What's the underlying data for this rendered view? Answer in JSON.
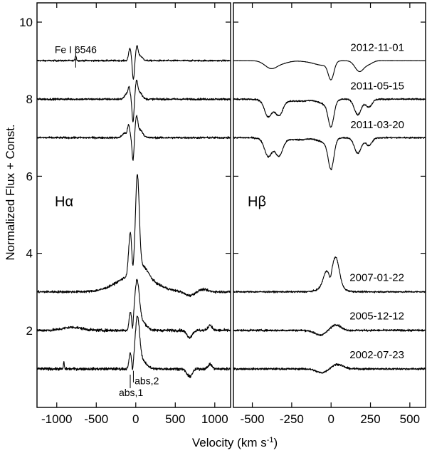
{
  "chart_data": {
    "type": "line",
    "ylabel": "Normalized Flux + Const.",
    "xlabel": "Velocity (km s",
    "xlabel_sup": "-1",
    "xlabel_close": ")",
    "ylim": [
      0.0,
      10.5
    ],
    "yticks": [
      2,
      4,
      6,
      8,
      10
    ],
    "grid": false,
    "epochs": [
      "2012-11-01",
      "2011-05-15",
      "2011-03-20",
      "2007-01-22",
      "2005-12-12",
      "2002-07-23"
    ],
    "panels": [
      {
        "label": "Hα",
        "xlim": [
          -1250,
          1200
        ],
        "xticks": [
          -1000,
          -500,
          0,
          500,
          1000
        ],
        "xtick_labels": [
          "-1000",
          "-500",
          "0",
          "500",
          "1000"
        ],
        "annotations": [
          {
            "text": "Fe I 6546",
            "x": -760,
            "y": 9.2
          },
          {
            "text": "abs,1",
            "x": -60,
            "y": 0.3
          },
          {
            "text": "abs,2",
            "x": -15,
            "y": 0.6
          }
        ],
        "series": [
          {
            "epoch": "2012-11-01",
            "offset": 9.0,
            "noise": 0.02,
            "features": [
              [
                -760,
                0.13,
                8
              ],
              [
                -75,
                0.32,
                15
              ],
              [
                -30,
                -0.5,
                12
              ],
              [
                15,
                0.33,
                15
              ],
              [
                55,
                0.12,
                30
              ]
            ]
          },
          {
            "epoch": "2011-05-15",
            "offset": 8.0,
            "noise": 0.025,
            "features": [
              [
                -85,
                0.28,
                14
              ],
              [
                -120,
                0.12,
                25
              ],
              [
                -35,
                -0.6,
                12
              ],
              [
                10,
                0.42,
                15
              ],
              [
                50,
                0.18,
                30
              ]
            ]
          },
          {
            "epoch": "2011-03-20",
            "offset": 7.0,
            "noise": 0.025,
            "features": [
              [
                -90,
                0.3,
                14
              ],
              [
                -140,
                0.12,
                30
              ],
              [
                -35,
                -0.6,
                12
              ],
              [
                10,
                0.48,
                16
              ],
              [
                55,
                0.2,
                35
              ]
            ]
          },
          {
            "epoch": "2007-01-22",
            "offset": 3.0,
            "noise": 0.03,
            "features": [
              [
                0,
                0.45,
                220
              ],
              [
                -70,
                1.1,
                20
              ],
              [
                20,
                2.5,
                24
              ],
              [
                -40,
                -0.2,
                10
              ],
              [
                100,
                0.25,
                60
              ],
              [
                680,
                -0.1,
                60
              ],
              [
                850,
                0.06,
                60
              ]
            ]
          },
          {
            "epoch": "2005-12-12",
            "offset": 2.0,
            "noise": 0.035,
            "features": [
              [
                -70,
                0.45,
                15
              ],
              [
                15,
                1.25,
                30
              ],
              [
                -40,
                -0.22,
                8
              ],
              [
                90,
                0.2,
                50
              ],
              [
                680,
                -0.18,
                35
              ],
              [
                940,
                0.14,
                25
              ],
              [
                -800,
                0.08,
                120
              ]
            ]
          },
          {
            "epoch": "2002-07-23",
            "offset": 1.0,
            "noise": 0.035,
            "features": [
              [
                -70,
                0.4,
                15
              ],
              [
                20,
                1.3,
                28
              ],
              [
                -40,
                -0.2,
                8
              ],
              [
                90,
                0.2,
                50
              ],
              [
                680,
                -0.2,
                35
              ],
              [
                940,
                0.12,
                25
              ],
              [
                -910,
                0.2,
                5
              ]
            ]
          }
        ]
      },
      {
        "label": "Hβ",
        "xlim": [
          -620,
          600
        ],
        "xticks": [
          -500,
          -250,
          0,
          250,
          500
        ],
        "xtick_labels": [
          "-500",
          "-250",
          "0",
          "250",
          "500"
        ],
        "annotations": [],
        "series": [
          {
            "epoch": "2012-11-01",
            "offset": 9.0,
            "noise": 0.004,
            "features": [
              [
                -380,
                -0.2,
                40
              ],
              [
                -300,
                -0.05,
                40
              ],
              [
                -100,
                -0.05,
                60
              ],
              [
                0,
                -0.45,
                18
              ],
              [
                -50,
                -0.08,
                40
              ],
              [
                180,
                -0.28,
                28
              ],
              [
                240,
                -0.08,
                25
              ]
            ]
          },
          {
            "epoch": "2011-05-15",
            "offset": 8.0,
            "noise": 0.02,
            "features": [
              [
                -400,
                -0.35,
                22
              ],
              [
                -330,
                -0.3,
                22
              ],
              [
                -360,
                -0.15,
                50
              ],
              [
                -200,
                -0.05,
                60
              ],
              [
                0,
                -0.65,
                18
              ],
              [
                -40,
                -0.12,
                40
              ],
              [
                170,
                -0.4,
                22
              ],
              [
                240,
                -0.2,
                20
              ]
            ]
          },
          {
            "epoch": "2011-03-20",
            "offset": 7.0,
            "noise": 0.02,
            "features": [
              [
                -400,
                -0.38,
                22
              ],
              [
                -330,
                -0.35,
                22
              ],
              [
                -360,
                -0.15,
                50
              ],
              [
                -200,
                -0.05,
                60
              ],
              [
                0,
                -0.75,
                18
              ],
              [
                -40,
                -0.12,
                40
              ],
              [
                170,
                -0.4,
                22
              ],
              [
                240,
                -0.2,
                20
              ]
            ]
          },
          {
            "epoch": "2007-01-22",
            "offset": 3.0,
            "noise": 0.02,
            "features": [
              [
                -30,
                0.35,
                20
              ],
              [
                30,
                0.72,
                22
              ],
              [
                0,
                0.2,
                55
              ],
              [
                -5,
                -0.18,
                8
              ]
            ]
          },
          {
            "epoch": "2005-12-12",
            "offset": 2.0,
            "noise": 0.025,
            "features": [
              [
                -70,
                -0.12,
                35
              ],
              [
                30,
                0.15,
                30
              ]
            ]
          },
          {
            "epoch": "2002-07-23",
            "offset": 1.0,
            "noise": 0.025,
            "features": [
              [
                -60,
                -0.1,
                35
              ],
              [
                40,
                0.12,
                35
              ]
            ]
          }
        ]
      }
    ]
  }
}
